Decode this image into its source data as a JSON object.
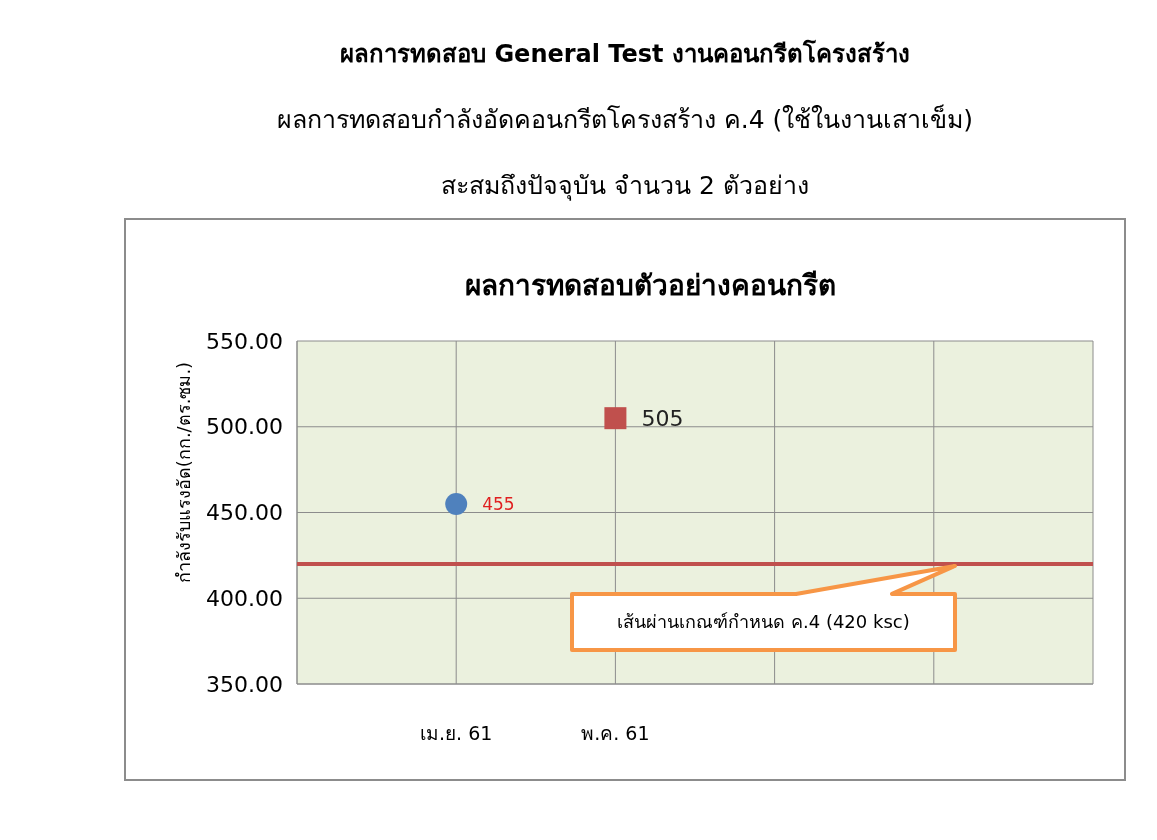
{
  "chart_data": {
    "type": "scatter",
    "title": "ผลการทดสอบ General Test งานคอนกรีตโครงสร้าง",
    "subtitle": "ผลการทดสอบกำลังอัดคอนกรีตโครงสร้าง ค.4 (ใช้ในงานเสาเข็ม)\nสะสมถึงปัจจุบัน จำนวน 2 ตัวอย่าง",
    "annotations": [
      "ผลการทดสอบตัวอย่างคอนกรีต"
    ],
    "ylabel": "กำลังรับแรงอัด(กก./ตร.ซม.)",
    "categories": [
      null,
      "เม.ย. 61",
      "พ.ค. 61",
      null,
      null
    ],
    "series": [
      {
        "color": "#4f81bd",
        "marker": "circle",
        "values": [
          null,
          455,
          null,
          null,
          null
        ]
      },
      {
        "color": "#c0504d",
        "marker": "square",
        "values": [
          null,
          null,
          505,
          null,
          null
        ]
      }
    ],
    "ylim": [
      350,
      550
    ],
    "yticks": [
      {
        "value": 350,
        "label": "350.00"
      },
      {
        "value": 400,
        "label": "400.00"
      },
      {
        "value": 450,
        "label": "450.00"
      },
      {
        "value": 500,
        "label": "500.00"
      },
      {
        "value": 550,
        "label": "550.00"
      }
    ],
    "ref_lines": [
      {
        "axis": "y",
        "value": 420,
        "label": "เส้นผ่านเกณฑ์กำหนด ค.4 (420 ksc)",
        "color": "#c0504d"
      }
    ],
    "data_labels": true,
    "grid": true
  }
}
